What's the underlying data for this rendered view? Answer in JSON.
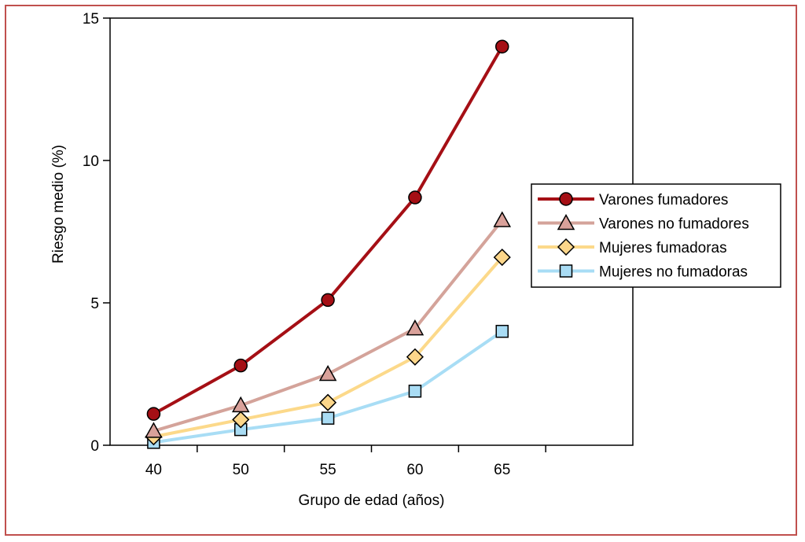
{
  "chart_data": {
    "type": "line",
    "categories": [
      "40",
      "50",
      "55",
      "60",
      "65"
    ],
    "x_slots": 6,
    "xlabel": "Grupo de edad (años)",
    "ylabel": "Riesgo medio (%)",
    "ylim": [
      0,
      15
    ],
    "yticks": [
      {
        "value": 0,
        "label": "0"
      },
      {
        "value": 5,
        "label": "5"
      },
      {
        "value": 10,
        "label": "10"
      },
      {
        "value": 15,
        "label": "15"
      }
    ],
    "grid": false,
    "legend_position": "right",
    "series": [
      {
        "name": "Varones fumadores",
        "values": [
          1.1,
          2.8,
          5.1,
          8.7,
          14.0
        ],
        "line_color": "#a50f15",
        "marker": "circle",
        "marker_fill": "#a50f15",
        "marker_stroke": "#000000",
        "line_width": 4
      },
      {
        "name": "Varones no fumadores",
        "values": [
          0.5,
          1.4,
          2.5,
          4.1,
          7.9
        ],
        "line_color": "#d4a39a",
        "marker": "triangle",
        "marker_fill": "#d9a19a",
        "marker_stroke": "#000000",
        "line_width": 4
      },
      {
        "name": "Mujeres fumadoras",
        "values": [
          0.3,
          0.9,
          1.5,
          3.1,
          6.6
        ],
        "line_color": "#fcd98a",
        "marker": "diamond",
        "marker_fill": "#fcd68a",
        "marker_stroke": "#000000",
        "line_width": 4
      },
      {
        "name": "Mujeres no fumadoras",
        "values": [
          0.1,
          0.55,
          0.95,
          1.9,
          4.0
        ],
        "line_color": "#a8ddf5",
        "marker": "square",
        "marker_fill": "#a9dcf4",
        "marker_stroke": "#000000",
        "line_width": 4
      }
    ]
  }
}
